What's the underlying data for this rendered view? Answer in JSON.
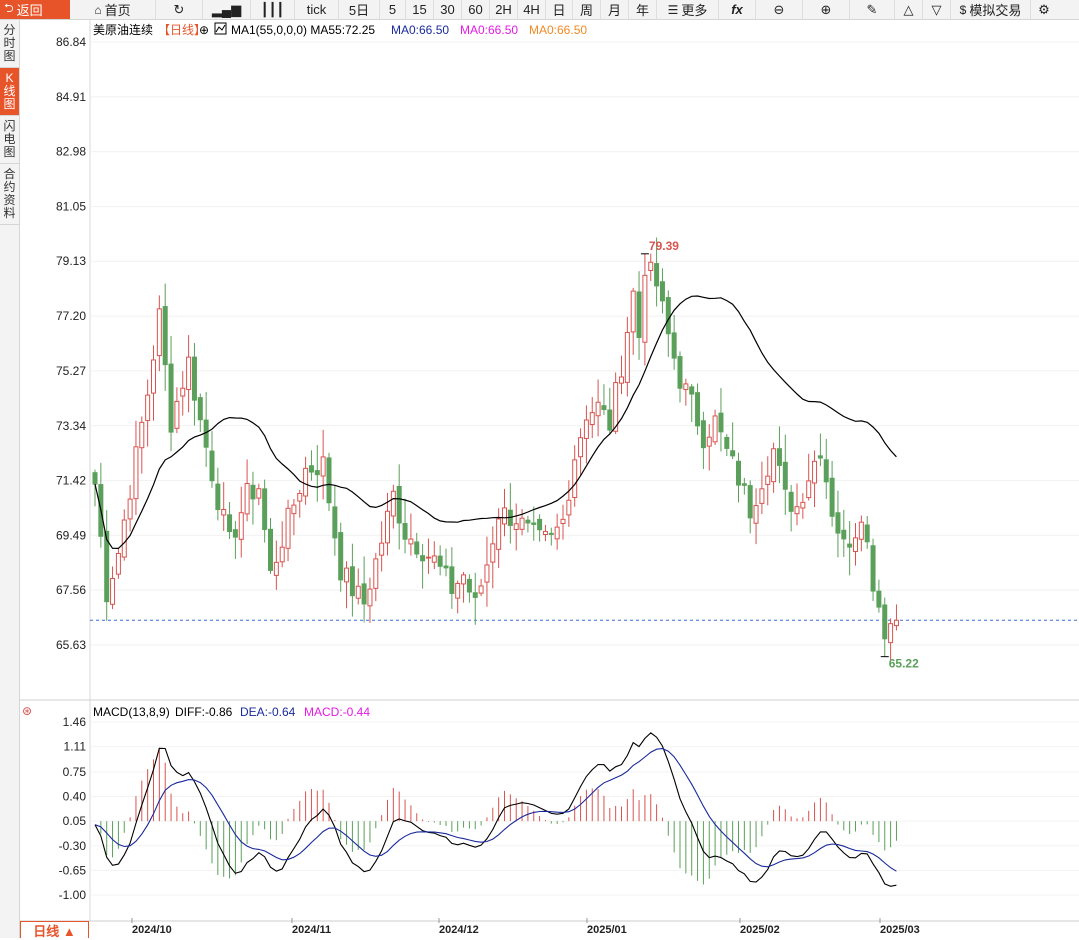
{
  "toolbar": {
    "back": "返回",
    "home": "首页",
    "tick": "tick",
    "periods": [
      "5日",
      "5",
      "15",
      "30",
      "60",
      "2H",
      "4H",
      "日",
      "周",
      "月",
      "年"
    ],
    "more": "更多",
    "fx": "fx",
    "trade": "模拟交易"
  },
  "sidebar": [
    {
      "label": "分时图",
      "active": false
    },
    {
      "label": "K线图",
      "active": true
    },
    {
      "label": "闪电图",
      "active": false
    },
    {
      "label": "合约资料",
      "active": false
    }
  ],
  "legend": {
    "name": "美原油连续",
    "period": "【日线】",
    "ma_main": "MA1(55,0,0,0) MA55:72.25",
    "ma_a": "MA0:66.50",
    "ma_b": "MA0:66.50",
    "ma_c": "MA0:66.50"
  },
  "macd_legend": {
    "name": "MACD(13,8,9)",
    "diff": "DIFF:-0.86",
    "dea": "DEA:-0.64",
    "macd": "MACD:-0.44"
  },
  "period_tab": "日线 ▲",
  "colors": {
    "up": "#d9534f",
    "down": "#5aa05a",
    "ma": "#000000",
    "diff": "#000000",
    "dea": "#1a2a9c",
    "macd_pink": "#e619e6",
    "ma_orange": "#f08a24",
    "accent": "#e8542a",
    "current_price_line": "#3a6fd8"
  },
  "chart_data": [
    {
      "type": "candlestick",
      "title": "美原油连续",
      "yticks": [
        "86.84",
        "84.91",
        "82.98",
        "81.05",
        "79.13",
        "77.20",
        "75.27",
        "73.34",
        "71.42",
        "69.49",
        "67.56",
        "65.63"
      ],
      "xlabels": [
        "2024/10",
        "2024/11",
        "2024/12",
        "2025/01",
        "2025/02",
        "2025/03"
      ],
      "ylim": [
        64.6,
        86.84
      ],
      "annotations": {
        "high": "79.39",
        "low": "65.22"
      },
      "current_price": 66.5,
      "ma55_last": 72.25,
      "close_path": [
        {
          "idx": 0,
          "close": 71.3
        },
        {
          "idx": 2,
          "close": 67.5
        },
        {
          "idx": 4,
          "close": 68.9
        },
        {
          "idx": 9,
          "close": 74.5
        },
        {
          "idx": 11,
          "close": 77.2
        },
        {
          "idx": 13,
          "close": 73.5
        },
        {
          "idx": 16,
          "close": 75.6
        },
        {
          "idx": 18,
          "close": 73.5
        },
        {
          "idx": 21,
          "close": 70.8
        },
        {
          "idx": 23,
          "close": 69.2
        },
        {
          "idx": 26,
          "close": 70.9
        },
        {
          "idx": 28,
          "close": 71.2
        },
        {
          "idx": 30,
          "close": 68.1
        },
        {
          "idx": 33,
          "close": 70.0
        },
        {
          "idx": 36,
          "close": 71.8
        },
        {
          "idx": 39,
          "close": 72.0
        },
        {
          "idx": 42,
          "close": 68.3
        },
        {
          "idx": 44,
          "close": 67.6
        },
        {
          "idx": 46,
          "close": 67.1
        },
        {
          "idx": 49,
          "close": 69.3
        },
        {
          "idx": 51,
          "close": 70.9
        },
        {
          "idx": 53,
          "close": 69.6
        },
        {
          "idx": 56,
          "close": 69.0
        },
        {
          "idx": 58,
          "close": 68.6
        },
        {
          "idx": 61,
          "close": 67.6
        },
        {
          "idx": 63,
          "close": 68.1
        },
        {
          "idx": 65,
          "close": 67.0
        },
        {
          "idx": 67,
          "close": 68.5
        },
        {
          "idx": 69,
          "close": 70.3
        },
        {
          "idx": 72,
          "close": 70.1
        },
        {
          "idx": 74,
          "close": 69.6
        },
        {
          "idx": 76,
          "close": 69.3
        },
        {
          "idx": 78,
          "close": 69.3
        },
        {
          "idx": 80,
          "close": 70.0
        },
        {
          "idx": 82,
          "close": 72.3
        },
        {
          "idx": 84,
          "close": 73.8
        },
        {
          "idx": 86,
          "close": 74.0
        },
        {
          "idx": 88,
          "close": 73.4
        },
        {
          "idx": 90,
          "close": 75.5
        },
        {
          "idx": 92,
          "close": 78.0
        },
        {
          "idx": 93,
          "close": 76.5
        },
        {
          "idx": 94,
          "close": 79.0
        },
        {
          "idx": 96,
          "close": 78.3
        },
        {
          "idx": 98,
          "close": 76.5
        },
        {
          "idx": 100,
          "close": 75.0
        },
        {
          "idx": 102,
          "close": 74.1
        },
        {
          "idx": 104,
          "close": 73.0
        },
        {
          "idx": 106,
          "close": 73.5
        },
        {
          "idx": 108,
          "close": 72.4
        },
        {
          "idx": 110,
          "close": 71.5
        },
        {
          "idx": 112,
          "close": 70.4
        },
        {
          "idx": 114,
          "close": 71.5
        },
        {
          "idx": 116,
          "close": 72.5
        },
        {
          "idx": 118,
          "close": 70.8
        },
        {
          "idx": 120,
          "close": 70.5
        },
        {
          "idx": 122,
          "close": 71.6
        },
        {
          "idx": 124,
          "close": 72.6
        },
        {
          "idx": 126,
          "close": 70.4
        },
        {
          "idx": 128,
          "close": 69.1
        },
        {
          "idx": 130,
          "close": 69.7
        },
        {
          "idx": 131,
          "close": 70.4
        },
        {
          "idx": 133,
          "close": 67.9
        },
        {
          "idx": 135,
          "close": 66.2
        },
        {
          "idx": 136,
          "close": 66.4
        },
        {
          "idx": 137,
          "close": 66.5
        }
      ]
    },
    {
      "type": "line",
      "title": "MACD(13,8,9)",
      "yticks": [
        "1.46",
        "1.11",
        "0.75",
        "0.40",
        "0.05",
        "-0.30",
        "-0.65",
        "-1.00"
      ],
      "ylim": [
        -1.3,
        1.7
      ],
      "series": [
        {
          "name": "DIFF",
          "last": -0.86
        },
        {
          "name": "DEA",
          "last": -0.64
        },
        {
          "name": "MACD",
          "last": -0.44
        }
      ]
    }
  ]
}
